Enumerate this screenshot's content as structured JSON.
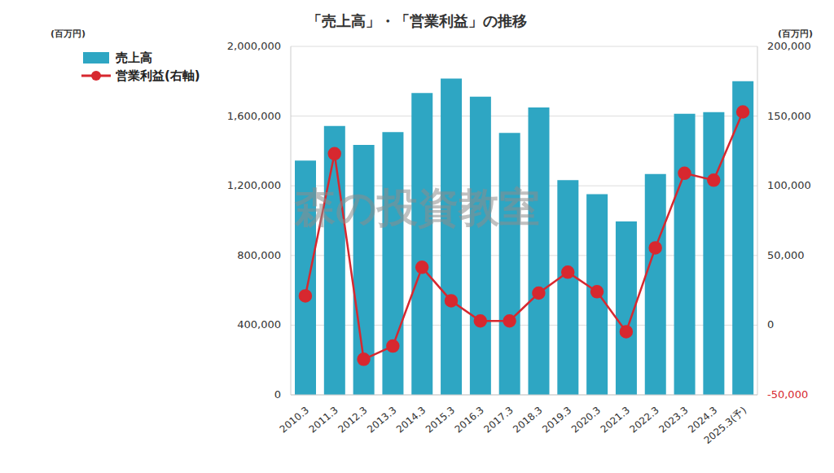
{
  "chart_data": {
    "type": "bar",
    "title": "「売上高」・「営業利益」の推移",
    "annotation": "森の投資教室",
    "y_label": "(百万円)",
    "y2_label": "(百万円)",
    "categories": [
      "2010.3",
      "2011.3",
      "2012.3",
      "2013.3",
      "2014.3",
      "2015.3",
      "2016.3",
      "2017.3",
      "2018.3",
      "2019.3",
      "2020.3",
      "2021.3",
      "2022.3",
      "2023.3",
      "2024.3",
      "2025.3(予)"
    ],
    "series": [
      {
        "name": "売上高",
        "type": "bar",
        "axis": "y",
        "color": "#2ea6c3",
        "values": [
          1345000,
          1543000,
          1435000,
          1508000,
          1733000,
          1815000,
          1711000,
          1504000,
          1650000,
          1233000,
          1152000,
          995000,
          1267000,
          1613000,
          1623000,
          1800000
        ]
      },
      {
        "name": "営業利益(右軸)",
        "type": "line",
        "axis": "y2",
        "color": "#d7282f",
        "marker": "circle",
        "values": [
          21000,
          123000,
          -24500,
          -15000,
          41500,
          17500,
          3000,
          3000,
          23000,
          38000,
          24000,
          -4700,
          55500,
          109000,
          104000,
          153000
        ]
      }
    ],
    "ylim": [
      0,
      2000000
    ],
    "yticks": [
      {
        "value": 0,
        "label": "0"
      },
      {
        "value": 400000,
        "label": "400,000"
      },
      {
        "value": 800000,
        "label": "800,000"
      },
      {
        "value": 1200000,
        "label": "1,200,000"
      },
      {
        "value": 1600000,
        "label": "1,600,000"
      },
      {
        "value": 2000000,
        "label": "2,000,000"
      }
    ],
    "y2lim": [
      -50000,
      200000
    ],
    "y2ticks": [
      {
        "value": -50000,
        "label": "-50,000"
      },
      {
        "value": 0,
        "label": "0"
      },
      {
        "value": 50000,
        "label": "50,000"
      },
      {
        "value": 100000,
        "label": "100,000"
      },
      {
        "value": 150000,
        "label": "150,000"
      },
      {
        "value": 200000,
        "label": "200,000"
      }
    ],
    "grid": true,
    "legend": "upper left"
  }
}
